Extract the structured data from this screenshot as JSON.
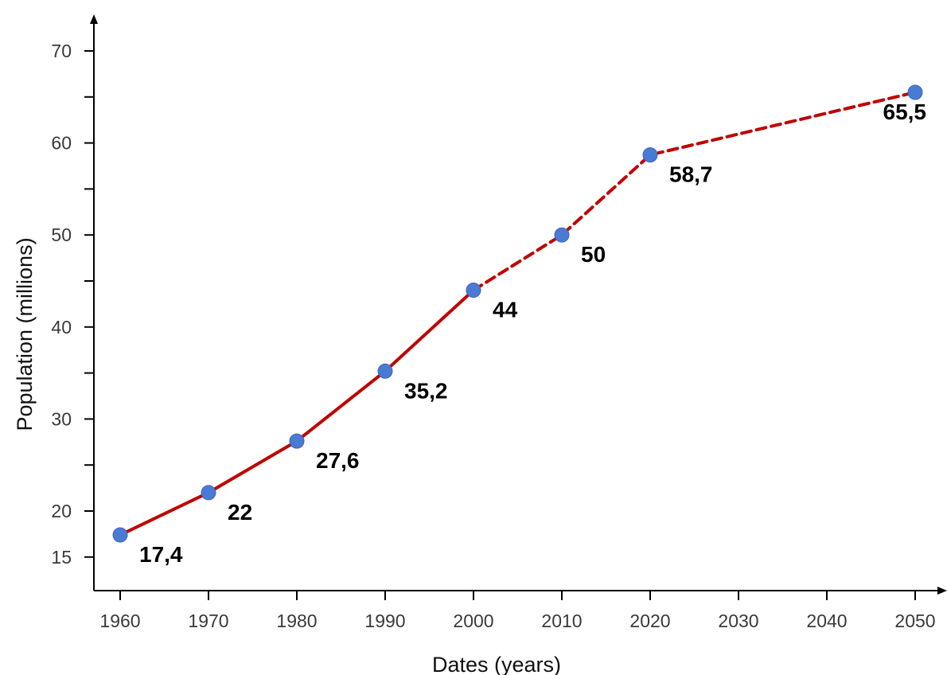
{
  "chart_data": {
    "type": "line",
    "title": "",
    "xlabel": "Dates (years)",
    "ylabel": "Population (millions)",
    "x_ticks": [
      1960,
      1970,
      1980,
      1990,
      2000,
      2010,
      2020,
      2030,
      2040,
      2050
    ],
    "y_ticks": [
      15,
      20,
      30,
      40,
      50,
      60,
      70
    ],
    "y_minor_ticks": [
      25,
      35,
      45,
      55,
      65
    ],
    "xlim": [
      1957,
      2053
    ],
    "ylim": [
      11.5,
      73
    ],
    "grid": false,
    "line_color": "#c00000",
    "point_color": "#4a7bd4",
    "series": [
      {
        "x": [
          1960,
          1970,
          1980,
          1990,
          2000,
          2010,
          2020,
          2050
        ],
        "values": [
          17.4,
          22,
          27.6,
          35.2,
          44,
          50,
          58.7,
          65.5
        ],
        "labels": [
          "17,4",
          "22",
          "27,6",
          "35,2",
          "44",
          "50",
          "58,7",
          "65,5"
        ],
        "solid_until": 2000,
        "dashed_from": 2000
      }
    ]
  }
}
